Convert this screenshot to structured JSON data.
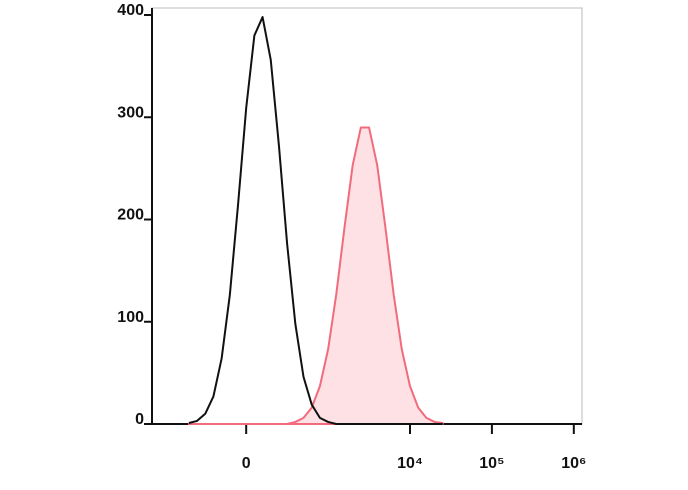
{
  "chart_data": {
    "type": "histogram",
    "x": [
      1.3,
      1.4,
      1.5,
      1.6,
      1.7,
      1.8,
      1.9,
      2.0,
      2.1,
      2.2,
      2.3,
      2.4,
      2.5,
      2.6,
      2.7,
      2.8,
      2.9,
      3.0,
      3.1,
      3.2,
      3.3,
      3.4,
      3.5,
      3.6,
      3.7,
      3.8,
      3.9,
      4.0,
      4.1,
      4.2,
      4.3,
      4.4
    ],
    "series": [
      {
        "color": "#111111",
        "fill": "none",
        "values": [
          1,
          3,
          10,
          27,
          64,
          126,
          214,
          309,
          380,
          398,
          356,
          272,
          176,
          98,
          46,
          19,
          6,
          2,
          0,
          0,
          0,
          0,
          0,
          0,
          0,
          0,
          0,
          0,
          0,
          0,
          0,
          0
        ]
      },
      {
        "color": "#f26b7d",
        "fill": "#fde1e4",
        "values": [
          0,
          0,
          0,
          0,
          0,
          0,
          0,
          0,
          0,
          0,
          0,
          0,
          0,
          2,
          6,
          16,
          37,
          73,
          127,
          192,
          253,
          290,
          290,
          253,
          192,
          127,
          73,
          37,
          16,
          6,
          2,
          1
        ]
      }
    ],
    "xlim": [
      0.85,
      6.1
    ],
    "xticks": [
      {
        "value": 2,
        "label": "0"
      },
      {
        "value": 4,
        "label": "10⁴"
      },
      {
        "value": 5,
        "label": "10⁵"
      },
      {
        "value": 6,
        "label": "10⁶"
      }
    ],
    "ylim": [
      0,
      400
    ],
    "yticks": [
      0,
      100,
      200,
      300,
      400
    ]
  }
}
